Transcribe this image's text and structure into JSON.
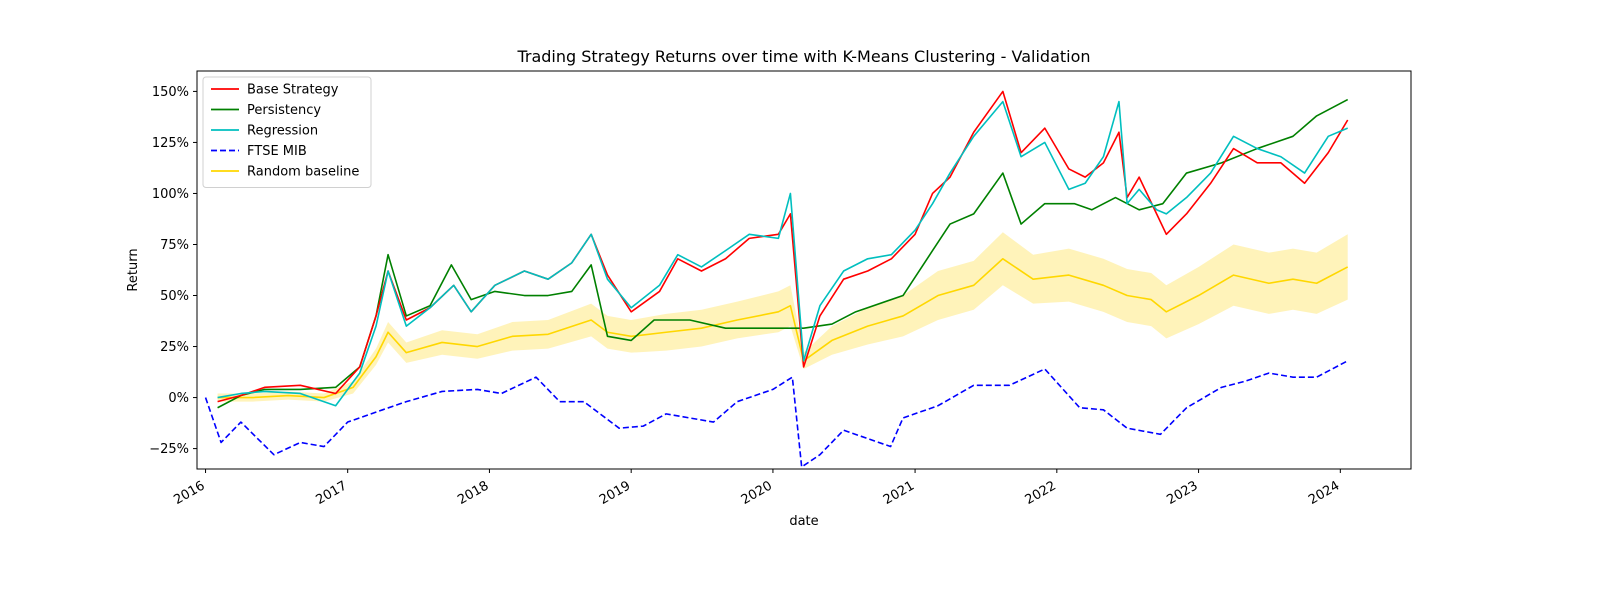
{
  "chart_data": {
    "type": "line",
    "title": "Trading Strategy Returns over time with K-Means Clustering - Validation",
    "xlabel": "date",
    "ylabel": "Return",
    "xlim": [
      "2015-12-10",
      "2024-07-01"
    ],
    "ylim": [
      -0.35,
      1.6
    ],
    "x_ticks": [
      "2016",
      "2017",
      "2018",
      "2019",
      "2020",
      "2021",
      "2022",
      "2023",
      "2024"
    ],
    "y_ticks": [
      {
        "value": -0.25,
        "label": "−25%"
      },
      {
        "value": 0.0,
        "label": "0%"
      },
      {
        "value": 0.25,
        "label": "25%"
      },
      {
        "value": 0.5,
        "label": "50%"
      },
      {
        "value": 0.75,
        "label": "75%"
      },
      {
        "value": 1.0,
        "label": "100%"
      },
      {
        "value": 1.25,
        "label": "125%"
      },
      {
        "value": 1.5,
        "label": "150%"
      }
    ],
    "grid": false,
    "legend_position": "top-left",
    "series": [
      {
        "name": "Base Strategy",
        "color": "#ff0000",
        "dash": "solid",
        "points": [
          [
            "2016-02-01",
            -0.02
          ],
          [
            "2016-04-01",
            0.01
          ],
          [
            "2016-06-01",
            0.05
          ],
          [
            "2016-09-01",
            0.06
          ],
          [
            "2016-12-01",
            0.02
          ],
          [
            "2017-02-01",
            0.15
          ],
          [
            "2017-03-15",
            0.4
          ],
          [
            "2017-04-15",
            0.62
          ],
          [
            "2017-06-01",
            0.38
          ],
          [
            "2017-08-01",
            0.44
          ],
          [
            "2017-10-01",
            0.55
          ],
          [
            "2017-11-15",
            0.42
          ],
          [
            "2018-01-15",
            0.55
          ],
          [
            "2018-04-01",
            0.62
          ],
          [
            "2018-06-01",
            0.58
          ],
          [
            "2018-08-01",
            0.66
          ],
          [
            "2018-09-20",
            0.8
          ],
          [
            "2018-11-01",
            0.6
          ],
          [
            "2019-01-01",
            0.42
          ],
          [
            "2019-03-15",
            0.52
          ],
          [
            "2019-05-01",
            0.68
          ],
          [
            "2019-07-01",
            0.62
          ],
          [
            "2019-09-01",
            0.68
          ],
          [
            "2019-11-01",
            0.78
          ],
          [
            "2020-01-15",
            0.8
          ],
          [
            "2020-02-15",
            0.9
          ],
          [
            "2020-03-20",
            0.15
          ],
          [
            "2020-05-01",
            0.4
          ],
          [
            "2020-07-01",
            0.58
          ],
          [
            "2020-09-01",
            0.62
          ],
          [
            "2020-11-01",
            0.68
          ],
          [
            "2021-01-01",
            0.8
          ],
          [
            "2021-02-15",
            1.0
          ],
          [
            "2021-04-01",
            1.08
          ],
          [
            "2021-06-01",
            1.3
          ],
          [
            "2021-08-15",
            1.5
          ],
          [
            "2021-10-01",
            1.2
          ],
          [
            "2021-12-01",
            1.32
          ],
          [
            "2022-02-01",
            1.12
          ],
          [
            "2022-03-15",
            1.08
          ],
          [
            "2022-05-01",
            1.15
          ],
          [
            "2022-06-10",
            1.3
          ],
          [
            "2022-07-01",
            0.98
          ],
          [
            "2022-08-01",
            1.08
          ],
          [
            "2022-09-15",
            0.9
          ],
          [
            "2022-10-10",
            0.8
          ],
          [
            "2022-12-01",
            0.9
          ],
          [
            "2023-02-01",
            1.05
          ],
          [
            "2023-04-01",
            1.22
          ],
          [
            "2023-06-01",
            1.15
          ],
          [
            "2023-08-01",
            1.15
          ],
          [
            "2023-10-01",
            1.05
          ],
          [
            "2023-12-01",
            1.2
          ],
          [
            "2024-01-20",
            1.36
          ]
        ]
      },
      {
        "name": "Persistency",
        "color": "#008000",
        "dash": "solid",
        "points": [
          [
            "2016-02-01",
            -0.05
          ],
          [
            "2016-04-01",
            0.01
          ],
          [
            "2016-06-01",
            0.04
          ],
          [
            "2016-09-01",
            0.04
          ],
          [
            "2016-12-01",
            0.05
          ],
          [
            "2017-02-01",
            0.15
          ],
          [
            "2017-03-15",
            0.4
          ],
          [
            "2017-04-15",
            0.7
          ],
          [
            "2017-06-01",
            0.4
          ],
          [
            "2017-08-01",
            0.45
          ],
          [
            "2017-09-25",
            0.65
          ],
          [
            "2017-11-15",
            0.48
          ],
          [
            "2018-01-15",
            0.52
          ],
          [
            "2018-04-01",
            0.5
          ],
          [
            "2018-06-01",
            0.5
          ],
          [
            "2018-08-01",
            0.52
          ],
          [
            "2018-09-20",
            0.65
          ],
          [
            "2018-11-01",
            0.3
          ],
          [
            "2019-01-01",
            0.28
          ],
          [
            "2019-03-01",
            0.38
          ],
          [
            "2019-06-01",
            0.38
          ],
          [
            "2019-09-01",
            0.34
          ],
          [
            "2020-01-15",
            0.34
          ],
          [
            "2020-03-20",
            0.34
          ],
          [
            "2020-06-01",
            0.36
          ],
          [
            "2020-08-01",
            0.42
          ],
          [
            "2020-12-01",
            0.5
          ],
          [
            "2021-02-15",
            0.72
          ],
          [
            "2021-04-01",
            0.85
          ],
          [
            "2021-06-01",
            0.9
          ],
          [
            "2021-08-15",
            1.1
          ],
          [
            "2021-10-01",
            0.85
          ],
          [
            "2021-12-01",
            0.95
          ],
          [
            "2022-02-15",
            0.95
          ],
          [
            "2022-04-01",
            0.92
          ],
          [
            "2022-06-01",
            0.98
          ],
          [
            "2022-08-01",
            0.92
          ],
          [
            "2022-10-01",
            0.95
          ],
          [
            "2022-12-01",
            1.1
          ],
          [
            "2023-03-01",
            1.15
          ],
          [
            "2023-06-01",
            1.22
          ],
          [
            "2023-09-01",
            1.28
          ],
          [
            "2023-11-01",
            1.38
          ],
          [
            "2024-01-20",
            1.46
          ]
        ]
      },
      {
        "name": "Regression",
        "color": "#00bfbf",
        "dash": "solid",
        "points": [
          [
            "2016-02-01",
            0.0
          ],
          [
            "2016-04-01",
            0.02
          ],
          [
            "2016-06-01",
            0.03
          ],
          [
            "2016-09-01",
            0.02
          ],
          [
            "2016-12-01",
            -0.04
          ],
          [
            "2017-02-01",
            0.12
          ],
          [
            "2017-03-15",
            0.35
          ],
          [
            "2017-04-15",
            0.62
          ],
          [
            "2017-06-01",
            0.35
          ],
          [
            "2017-08-01",
            0.44
          ],
          [
            "2017-10-01",
            0.55
          ],
          [
            "2017-11-15",
            0.42
          ],
          [
            "2018-01-15",
            0.55
          ],
          [
            "2018-04-01",
            0.62
          ],
          [
            "2018-06-01",
            0.58
          ],
          [
            "2018-08-01",
            0.66
          ],
          [
            "2018-09-20",
            0.8
          ],
          [
            "2018-11-01",
            0.58
          ],
          [
            "2019-01-01",
            0.44
          ],
          [
            "2019-03-15",
            0.55
          ],
          [
            "2019-05-01",
            0.7
          ],
          [
            "2019-07-01",
            0.64
          ],
          [
            "2019-09-01",
            0.72
          ],
          [
            "2019-11-01",
            0.8
          ],
          [
            "2020-01-15",
            0.78
          ],
          [
            "2020-02-15",
            1.0
          ],
          [
            "2020-03-20",
            0.18
          ],
          [
            "2020-05-01",
            0.45
          ],
          [
            "2020-07-01",
            0.62
          ],
          [
            "2020-09-01",
            0.68
          ],
          [
            "2020-11-01",
            0.7
          ],
          [
            "2021-01-01",
            0.82
          ],
          [
            "2021-02-15",
            0.95
          ],
          [
            "2021-04-01",
            1.1
          ],
          [
            "2021-06-01",
            1.28
          ],
          [
            "2021-08-15",
            1.45
          ],
          [
            "2021-10-01",
            1.18
          ],
          [
            "2021-12-01",
            1.25
          ],
          [
            "2022-02-01",
            1.02
          ],
          [
            "2022-03-15",
            1.05
          ],
          [
            "2022-05-01",
            1.18
          ],
          [
            "2022-06-10",
            1.45
          ],
          [
            "2022-07-01",
            0.95
          ],
          [
            "2022-08-01",
            1.02
          ],
          [
            "2022-09-15",
            0.92
          ],
          [
            "2022-10-10",
            0.9
          ],
          [
            "2022-12-01",
            0.98
          ],
          [
            "2023-02-01",
            1.1
          ],
          [
            "2023-04-01",
            1.28
          ],
          [
            "2023-06-01",
            1.22
          ],
          [
            "2023-08-01",
            1.18
          ],
          [
            "2023-10-01",
            1.1
          ],
          [
            "2023-12-01",
            1.28
          ],
          [
            "2024-01-20",
            1.32
          ]
        ]
      },
      {
        "name": "FTSE MIB",
        "color": "#0000ff",
        "dash": "dashed",
        "points": [
          [
            "2016-01-01",
            0.0
          ],
          [
            "2016-02-10",
            -0.22
          ],
          [
            "2016-04-01",
            -0.12
          ],
          [
            "2016-06-25",
            -0.28
          ],
          [
            "2016-09-01",
            -0.22
          ],
          [
            "2016-11-01",
            -0.24
          ],
          [
            "2017-01-01",
            -0.12
          ],
          [
            "2017-04-01",
            -0.06
          ],
          [
            "2017-06-01",
            -0.02
          ],
          [
            "2017-09-01",
            0.03
          ],
          [
            "2017-12-01",
            0.04
          ],
          [
            "2018-02-01",
            0.02
          ],
          [
            "2018-05-01",
            0.1
          ],
          [
            "2018-07-01",
            -0.02
          ],
          [
            "2018-09-01",
            -0.02
          ],
          [
            "2018-12-01",
            -0.15
          ],
          [
            "2019-02-01",
            -0.14
          ],
          [
            "2019-04-01",
            -0.08
          ],
          [
            "2019-06-01",
            -0.1
          ],
          [
            "2019-08-01",
            -0.12
          ],
          [
            "2019-10-01",
            -0.02
          ],
          [
            "2020-01-01",
            0.04
          ],
          [
            "2020-02-20",
            0.1
          ],
          [
            "2020-03-15",
            -0.34
          ],
          [
            "2020-05-01",
            -0.28
          ],
          [
            "2020-07-01",
            -0.16
          ],
          [
            "2020-10-30",
            -0.24
          ],
          [
            "2020-12-01",
            -0.1
          ],
          [
            "2021-03-01",
            -0.04
          ],
          [
            "2021-06-01",
            0.06
          ],
          [
            "2021-09-01",
            0.06
          ],
          [
            "2021-12-01",
            0.14
          ],
          [
            "2022-03-01",
            -0.05
          ],
          [
            "2022-05-01",
            -0.06
          ],
          [
            "2022-07-01",
            -0.15
          ],
          [
            "2022-09-25",
            -0.18
          ],
          [
            "2022-12-01",
            -0.05
          ],
          [
            "2023-03-01",
            0.05
          ],
          [
            "2023-05-01",
            0.08
          ],
          [
            "2023-07-01",
            0.12
          ],
          [
            "2023-09-01",
            0.1
          ],
          [
            "2023-11-01",
            0.1
          ],
          [
            "2024-01-20",
            0.18
          ]
        ]
      },
      {
        "name": "Random baseline",
        "color": "#ffd700",
        "dash": "solid",
        "band_color": "#fff2b3",
        "points": [
          [
            "2016-02-01",
            0.0
          ],
          [
            "2016-05-01",
            0.0
          ],
          [
            "2016-08-01",
            0.01
          ],
          [
            "2016-11-01",
            0.0
          ],
          [
            "2017-01-15",
            0.05
          ],
          [
            "2017-03-15",
            0.2
          ],
          [
            "2017-04-15",
            0.32
          ],
          [
            "2017-06-01",
            0.22
          ],
          [
            "2017-09-01",
            0.27
          ],
          [
            "2017-12-01",
            0.25
          ],
          [
            "2018-03-01",
            0.3
          ],
          [
            "2018-06-01",
            0.31
          ],
          [
            "2018-09-20",
            0.38
          ],
          [
            "2018-11-01",
            0.32
          ],
          [
            "2019-01-01",
            0.3
          ],
          [
            "2019-04-01",
            0.32
          ],
          [
            "2019-07-01",
            0.34
          ],
          [
            "2019-10-01",
            0.38
          ],
          [
            "2020-01-15",
            0.42
          ],
          [
            "2020-02-15",
            0.45
          ],
          [
            "2020-03-20",
            0.18
          ],
          [
            "2020-06-01",
            0.28
          ],
          [
            "2020-09-01",
            0.35
          ],
          [
            "2020-12-01",
            0.4
          ],
          [
            "2021-03-01",
            0.5
          ],
          [
            "2021-06-01",
            0.55
          ],
          [
            "2021-08-15",
            0.68
          ],
          [
            "2021-11-01",
            0.58
          ],
          [
            "2022-02-01",
            0.6
          ],
          [
            "2022-05-01",
            0.55
          ],
          [
            "2022-07-01",
            0.5
          ],
          [
            "2022-09-01",
            0.48
          ],
          [
            "2022-10-10",
            0.42
          ],
          [
            "2023-01-01",
            0.5
          ],
          [
            "2023-04-01",
            0.6
          ],
          [
            "2023-07-01",
            0.56
          ],
          [
            "2023-09-01",
            0.58
          ],
          [
            "2023-11-01",
            0.56
          ],
          [
            "2024-01-20",
            0.64
          ]
        ],
        "band_halfwidth": [
          0.02,
          0.02,
          0.02,
          0.02,
          0.03,
          0.04,
          0.05,
          0.05,
          0.06,
          0.06,
          0.07,
          0.07,
          0.08,
          0.08,
          0.08,
          0.09,
          0.09,
          0.09,
          0.1,
          0.1,
          0.04,
          0.07,
          0.09,
          0.1,
          0.12,
          0.12,
          0.13,
          0.12,
          0.13,
          0.13,
          0.13,
          0.13,
          0.13,
          0.14,
          0.15,
          0.15,
          0.15,
          0.15,
          0.16
        ]
      }
    ]
  }
}
